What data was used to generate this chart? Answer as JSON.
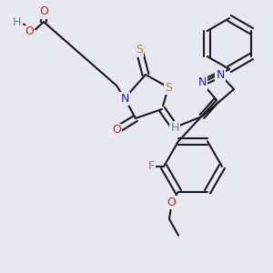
{
  "bg_color": "#e8e8f2",
  "bond_color": "#1a1a1a",
  "bond_lw": 1.5,
  "atom_bg": "#e8e8f2",
  "colors": {
    "H": "#4a9090",
    "O": "#cc2200",
    "N": "#1a1acc",
    "S": "#b8860b",
    "F": "#cc44cc",
    "C": "#1a1a1a"
  },
  "fs": 8.5
}
